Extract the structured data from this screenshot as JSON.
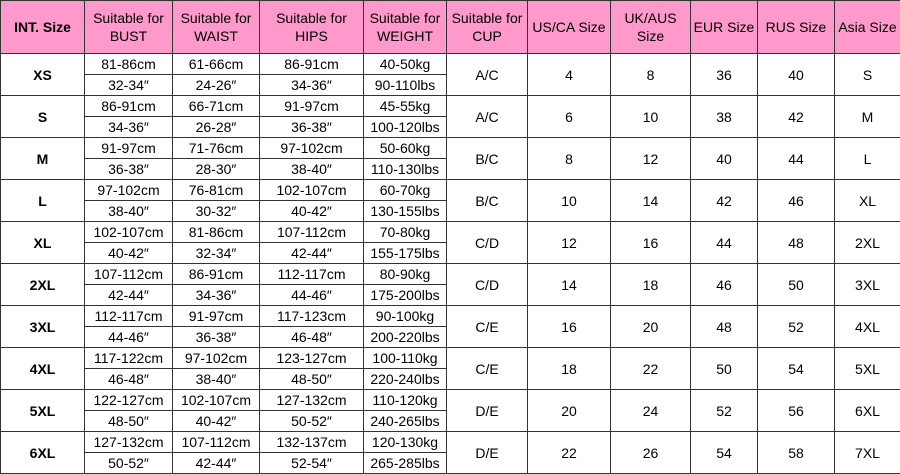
{
  "colors": {
    "header_bg": "#ff99cc"
  },
  "headers": [
    "INT. Size",
    "Suitable for BUST",
    "Suitable for WAIST",
    "Suitable for HIPS",
    "Suitable for WEIGHT",
    "Suitable for CUP",
    "US/CA Size",
    "UK/AUS Size",
    "EUR Size",
    "RUS Size",
    "Asia Size"
  ],
  "rows": [
    {
      "size": "XS",
      "bust": [
        "81-86cm",
        "32-34″"
      ],
      "waist": [
        "61-66cm",
        "24-26″"
      ],
      "hips": [
        "86-91cm",
        "34-36″"
      ],
      "weight": [
        "40-50kg",
        "90-110lbs"
      ],
      "cup": "A/C",
      "us": "4",
      "uk": "8",
      "eur": "36",
      "rus": "40",
      "asia": "S"
    },
    {
      "size": "S",
      "bust": [
        "86-91cm",
        "34-36″"
      ],
      "waist": [
        "66-71cm",
        "26-28″"
      ],
      "hips": [
        "91-97cm",
        "36-38″"
      ],
      "weight": [
        "45-55kg",
        "100-120lbs"
      ],
      "cup": "A/C",
      "us": "6",
      "uk": "10",
      "eur": "38",
      "rus": "42",
      "asia": "M"
    },
    {
      "size": "M",
      "bust": [
        "91-97cm",
        "36-38″"
      ],
      "waist": [
        "71-76cm",
        "28-30″"
      ],
      "hips": [
        "97-102cm",
        "38-40″"
      ],
      "weight": [
        "50-60kg",
        "110-130lbs"
      ],
      "cup": "B/C",
      "us": "8",
      "uk": "12",
      "eur": "40",
      "rus": "44",
      "asia": "L"
    },
    {
      "size": "L",
      "bust": [
        "97-102cm",
        "38-40″"
      ],
      "waist": [
        "76-81cm",
        "30-32″"
      ],
      "hips": [
        "102-107cm",
        "40-42″"
      ],
      "weight": [
        "60-70kg",
        "130-155lbs"
      ],
      "cup": "B/C",
      "us": "10",
      "uk": "14",
      "eur": "42",
      "rus": "46",
      "asia": "XL"
    },
    {
      "size": "XL",
      "bust": [
        "102-107cm",
        "40-42″"
      ],
      "waist": [
        "81-86cm",
        "32-34″"
      ],
      "hips": [
        "107-112cm",
        "42-44″"
      ],
      "weight": [
        "70-80kg",
        "155-175lbs"
      ],
      "cup": "C/D",
      "us": "12",
      "uk": "16",
      "eur": "44",
      "rus": "48",
      "asia": "2XL"
    },
    {
      "size": "2XL",
      "bust": [
        "107-112cm",
        "42-44″"
      ],
      "waist": [
        "86-91cm",
        "34-36″"
      ],
      "hips": [
        "112-117cm",
        "44-46″"
      ],
      "weight": [
        "80-90kg",
        "175-200lbs"
      ],
      "cup": "C/D",
      "us": "14",
      "uk": "18",
      "eur": "46",
      "rus": "50",
      "asia": "3XL"
    },
    {
      "size": "3XL",
      "bust": [
        "112-117cm",
        "44-46″"
      ],
      "waist": [
        "91-97cm",
        "36-38″"
      ],
      "hips": [
        "117-123cm",
        "46-48″"
      ],
      "weight": [
        "90-100kg",
        "200-220lbs"
      ],
      "cup": "C/E",
      "us": "16",
      "uk": "20",
      "eur": "48",
      "rus": "52",
      "asia": "4XL"
    },
    {
      "size": "4XL",
      "bust": [
        "117-122cm",
        "46-48″"
      ],
      "waist": [
        "97-102cm",
        "38-40″"
      ],
      "hips": [
        "123-127cm",
        "48-50″"
      ],
      "weight": [
        "100-110kg",
        "220-240lbs"
      ],
      "cup": "C/E",
      "us": "18",
      "uk": "22",
      "eur": "50",
      "rus": "54",
      "asia": "5XL"
    },
    {
      "size": "5XL",
      "bust": [
        "122-127cm",
        "48-50″"
      ],
      "waist": [
        "102-107cm",
        "40-42″"
      ],
      "hips": [
        "127-132cm",
        "50-52″"
      ],
      "weight": [
        "110-120kg",
        "240-265lbs"
      ],
      "cup": "D/E",
      "us": "20",
      "uk": "24",
      "eur": "52",
      "rus": "56",
      "asia": "6XL"
    },
    {
      "size": "6XL",
      "bust": [
        "127-132cm",
        "50-52″"
      ],
      "waist": [
        "107-112cm",
        "42-44″"
      ],
      "hips": [
        "132-137cm",
        "52-54″"
      ],
      "weight": [
        "120-130kg",
        "265-285lbs"
      ],
      "cup": "D/E",
      "us": "22",
      "uk": "26",
      "eur": "54",
      "rus": "58",
      "asia": "7XL"
    }
  ]
}
